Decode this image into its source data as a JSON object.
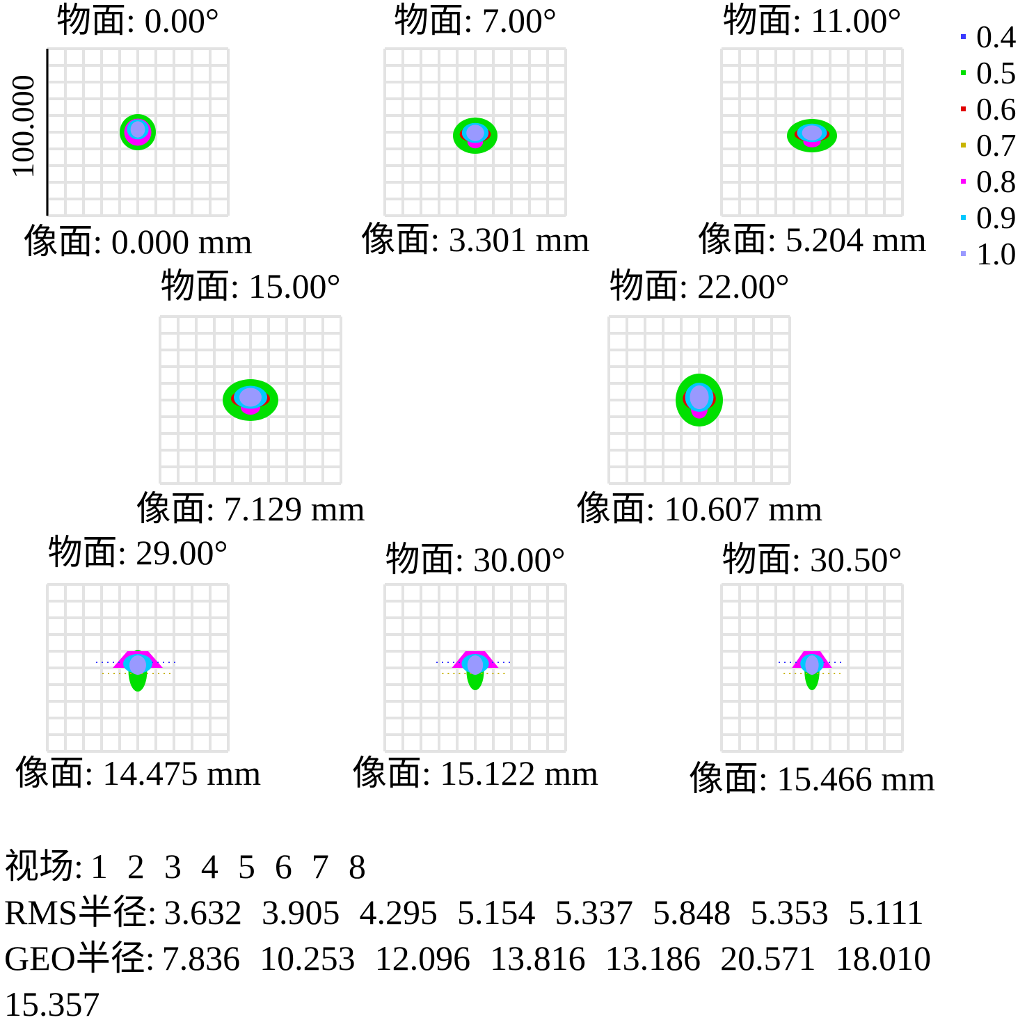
{
  "chart_data": {
    "type": "spot",
    "scale_label": "100.000",
    "panels": [
      {
        "title": "物面: 0.00°",
        "subtitle": "像面: 0.000 mm"
      },
      {
        "title": "物面: 7.00°",
        "subtitle": "像面: 3.301 mm"
      },
      {
        "title": "物面: 11.00°",
        "subtitle": "像面: 5.204 mm"
      },
      {
        "title": "物面: 15.00°",
        "subtitle": "像面: 7.129 mm"
      },
      {
        "title": "物面: 22.00°",
        "subtitle": "像面: 10.607 mm"
      },
      {
        "title": "物面: 29.00°",
        "subtitle": "像面: 14.475 mm"
      },
      {
        "title": "物面: 30.00°",
        "subtitle": "像面: 15.122 mm"
      },
      {
        "title": "物面: 30.50°",
        "subtitle": "像面: 15.466 mm"
      }
    ],
    "series": [
      {
        "name": "0.4",
        "color": "#3a3aff"
      },
      {
        "name": "0.5",
        "color": "#00e000"
      },
      {
        "name": "0.6",
        "color": "#e00000"
      },
      {
        "name": "0.7",
        "color": "#c8b400"
      },
      {
        "name": "0.8",
        "color": "#ff00ff"
      },
      {
        "name": "0.9",
        "color": "#00c8ff"
      },
      {
        "name": "1.0",
        "color": "#9999ff"
      }
    ],
    "footer": {
      "field_label": "视场:",
      "fields": [
        "1",
        "2",
        "3",
        "4",
        "5",
        "6",
        "7",
        "8"
      ],
      "rms_label": "RMS半径:",
      "rms": [
        "3.632",
        "3.905",
        "4.295",
        "5.154",
        "5.337",
        "5.848",
        "5.353",
        "5.111"
      ],
      "geo_label": "GEO半径:",
      "geo": [
        "7.836",
        "10.253",
        "12.096",
        "13.816",
        "13.186",
        "20.571",
        "18.010",
        "15.357"
      ]
    }
  }
}
